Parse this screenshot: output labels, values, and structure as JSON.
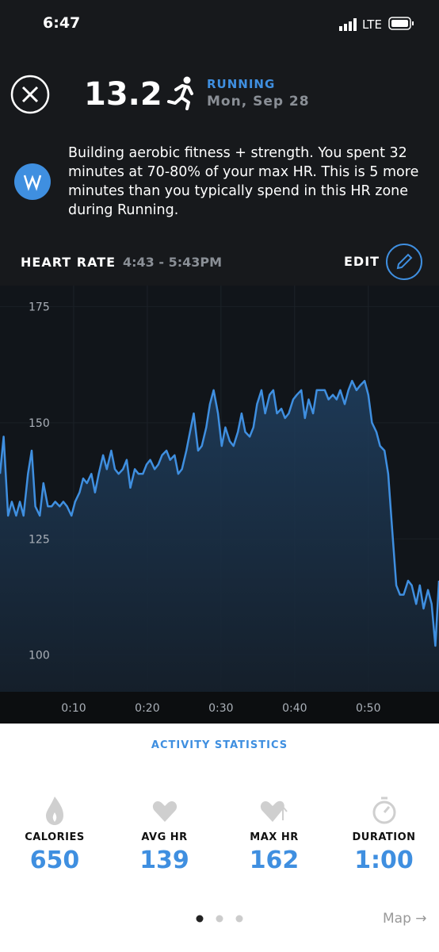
{
  "status_bar": {
    "time": "6:47",
    "network": "LTE"
  },
  "header": {
    "strain": "13.2",
    "activity": "RUNNING",
    "date": "Mon, Sep 28"
  },
  "insight": "Building aerobic fitness + strength. You spent 32 minutes at 70-80% of your max HR. This is 5 more minutes than you typically spend in this HR zone during Running.",
  "edit": "EDIT",
  "chart_data": {
    "type": "line",
    "title": "HEART RATE",
    "subtitle": "4:43 - 5:43PM",
    "color": "#3f8fe0",
    "grid": true,
    "x": [
      0,
      0.5,
      1.1,
      1.6,
      2.2,
      2.7,
      3.2,
      3.8,
      4.3,
      4.8,
      5.4,
      5.9,
      6.5,
      7.0,
      7.5,
      8.1,
      8.6,
      9.1,
      9.7,
      10.2,
      10.8,
      11.3,
      11.8,
      12.4,
      12.9,
      13.4,
      14.0,
      14.5,
      15.1,
      15.6,
      16.1,
      16.7,
      17.2,
      17.7,
      18.3,
      18.8,
      19.4,
      19.9,
      20.4,
      21.0,
      21.5,
      22.0,
      22.6,
      23.1,
      23.7,
      24.2,
      24.7,
      25.3,
      25.8,
      26.3,
      26.9,
      27.4,
      28.0,
      28.5,
      29.0,
      29.6,
      30.1,
      30.6,
      31.2,
      31.7,
      32.3,
      32.8,
      33.3,
      33.9,
      34.4,
      34.9,
      35.5,
      36.0,
      36.6,
      37.1,
      37.6,
      38.2,
      38.7,
      39.2,
      39.8,
      40.3,
      40.9,
      41.4,
      41.9,
      42.5,
      43.0,
      43.5,
      44.1,
      44.6,
      45.2,
      45.7,
      46.2,
      46.8,
      47.3,
      47.8,
      48.4,
      48.9,
      49.5,
      50.0,
      50.5,
      51.1,
      51.6,
      52.2,
      52.7,
      53.2,
      53.8,
      54.3,
      54.8,
      55.4,
      55.9,
      56.5,
      57.0,
      57.5,
      58.1,
      58.6,
      59.1,
      59.6
    ],
    "values": [
      139,
      147,
      130,
      133,
      130,
      133,
      130,
      139,
      144,
      132,
      130,
      137,
      132,
      132,
      133,
      132,
      133,
      132,
      130,
      133,
      135,
      138,
      137,
      139,
      135,
      139,
      143,
      140,
      144,
      140,
      139,
      140,
      142,
      136,
      140,
      139,
      139,
      141,
      142,
      140,
      141,
      143,
      144,
      142,
      143,
      139,
      140,
      144,
      148,
      152,
      144,
      145,
      149,
      154,
      157,
      152,
      145,
      149,
      146,
      145,
      148,
      152,
      148,
      147,
      149,
      154,
      157,
      152,
      156,
      157,
      152,
      153,
      151,
      152,
      155,
      156,
      157,
      151,
      155,
      152,
      157,
      157,
      157,
      155,
      156,
      155,
      157,
      154,
      157,
      159,
      157,
      158,
      159,
      156,
      150,
      148,
      145,
      144,
      139,
      128,
      115,
      113,
      113,
      116,
      115,
      111,
      115,
      110,
      114,
      111,
      102,
      116
    ],
    "xlim": [
      0,
      59.6
    ],
    "ylim": [
      92.1,
      179.5
    ],
    "xticks": [
      {
        "value": 10,
        "label": "0:10"
      },
      {
        "value": 20,
        "label": "0:20"
      },
      {
        "value": 30,
        "label": "0:30"
      },
      {
        "value": 40,
        "label": "0:40"
      },
      {
        "value": 50,
        "label": "0:50"
      }
    ],
    "yticks": [
      100,
      125,
      150,
      175
    ]
  },
  "statistics": {
    "title": "ACTIVITY STATISTICS",
    "items": [
      {
        "label": "CALORIES",
        "value": "650"
      },
      {
        "label": "AVG HR",
        "value": "139"
      },
      {
        "label": "MAX HR",
        "value": "162"
      },
      {
        "label": "DURATION",
        "value": "1:00"
      }
    ]
  },
  "map_link": "Map"
}
